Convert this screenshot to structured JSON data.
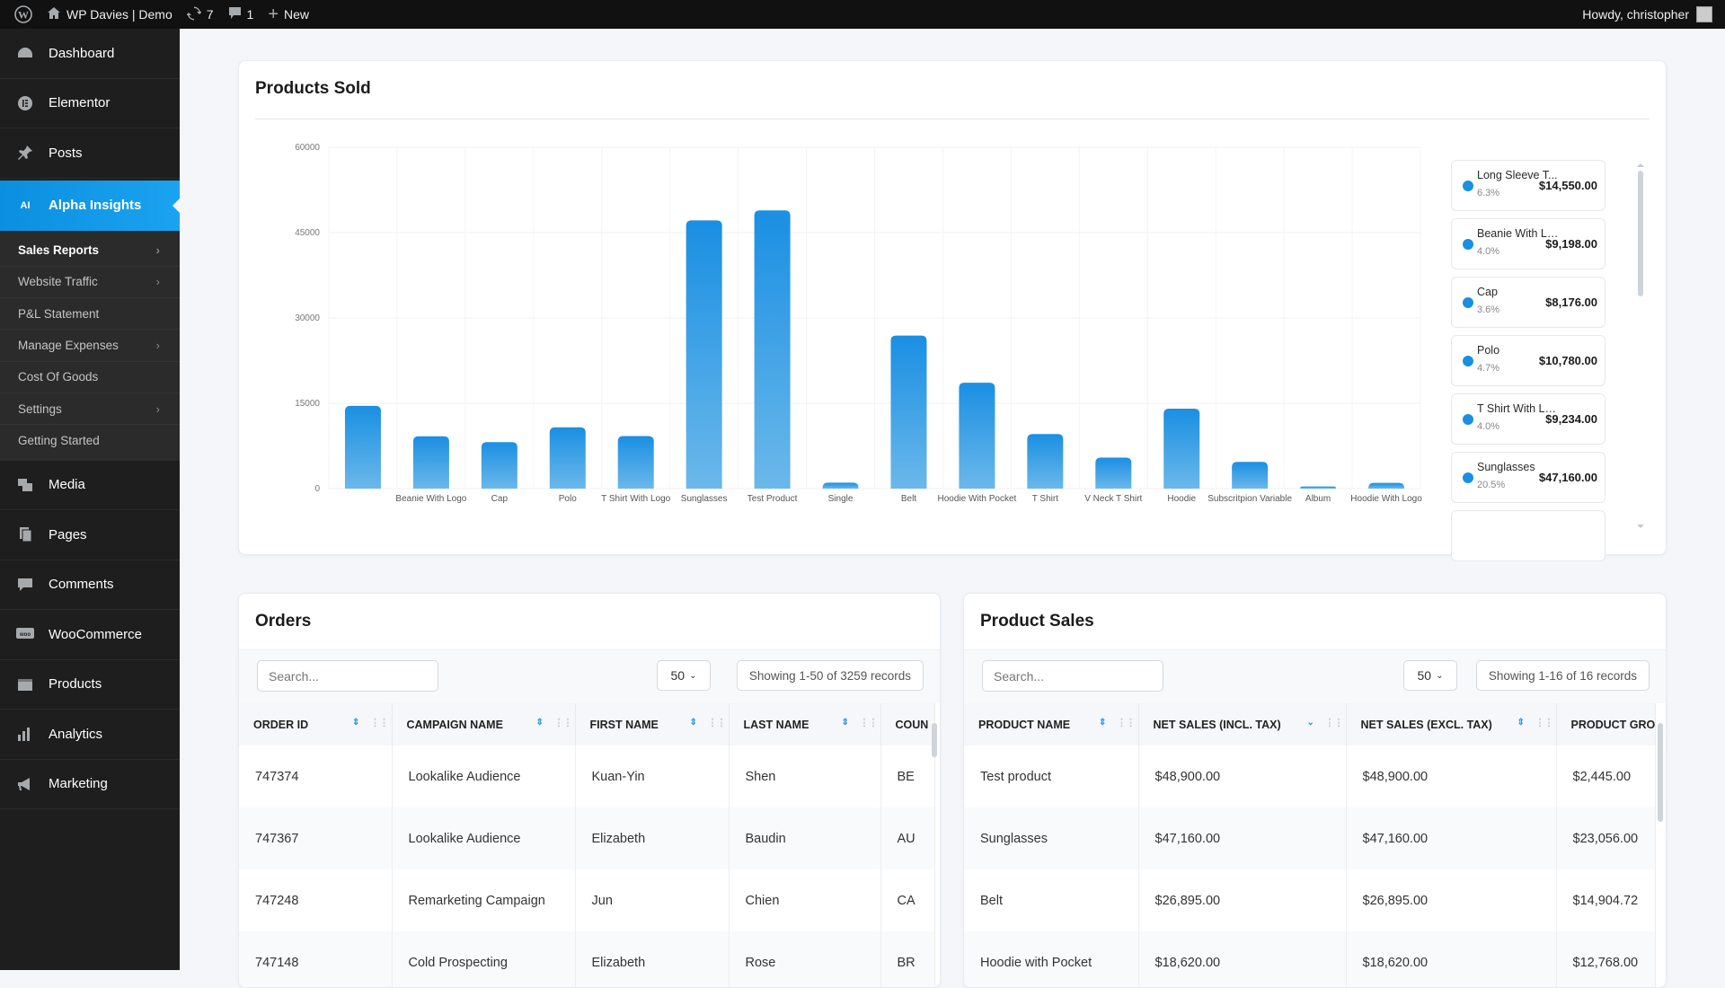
{
  "topbar": {
    "site_name": "WP Davies | Demo",
    "updates_count": "7",
    "comments_count": "1",
    "new_label": "New",
    "howdy": "Howdy, christopher"
  },
  "sidebar": {
    "items_top": [
      {
        "label": "Dashboard"
      },
      {
        "label": "Elementor"
      },
      {
        "label": "Posts"
      }
    ],
    "active": {
      "badge": "AI",
      "label": "Alpha Insights"
    },
    "submenu": [
      {
        "label": "Sales Reports",
        "has_children": true
      },
      {
        "label": "Website Traffic",
        "has_children": true
      },
      {
        "label": "P&L Statement",
        "has_children": false
      },
      {
        "label": "Manage Expenses",
        "has_children": true
      },
      {
        "label": "Cost Of Goods",
        "has_children": false
      },
      {
        "label": "Settings",
        "has_children": true
      },
      {
        "label": "Getting Started",
        "has_children": false
      }
    ],
    "items_bottom": [
      {
        "label": "Media"
      },
      {
        "label": "Pages"
      },
      {
        "label": "Comments"
      },
      {
        "label": "WooCommerce"
      },
      {
        "label": "Products"
      },
      {
        "label": "Analytics"
      },
      {
        "label": "Marketing"
      }
    ]
  },
  "products_sold": {
    "title": "Products Sold",
    "legend": [
      {
        "name": "Long Sleeve T...",
        "pct": "6.3%",
        "value": "$14,550.00"
      },
      {
        "name": "Beanie With Lo...",
        "pct": "4.0%",
        "value": "$9,198.00"
      },
      {
        "name": "Cap",
        "pct": "3.6%",
        "value": "$8,176.00"
      },
      {
        "name": "Polo",
        "pct": "4.7%",
        "value": "$10,780.00"
      },
      {
        "name": "T Shirt With Logo",
        "pct": "4.0%",
        "value": "$9,234.00"
      },
      {
        "name": "Sunglasses",
        "pct": "20.5%",
        "value": "$47,160.00"
      }
    ]
  },
  "chart_data": {
    "type": "bar",
    "title": "Products Sold",
    "categories": [
      "",
      "Beanie With Logo",
      "Cap",
      "Polo",
      "T Shirt With Logo",
      "Sunglasses",
      "Test Product",
      "Single",
      "Belt",
      "Hoodie With Pocket",
      "T Shirt",
      "V Neck T Shirt",
      "Hoodie",
      "Subscritpion Variable",
      "Album",
      "Hoodie With Logo"
    ],
    "values": [
      14550,
      9198,
      8176,
      10780,
      9234,
      47160,
      48900,
      1050,
      26895,
      18620,
      9600,
      5450,
      14050,
      4700,
      370,
      1000
    ],
    "yticks": [
      "0",
      "15000",
      "30000",
      "45000",
      "60000"
    ],
    "ylim": [
      0,
      60000
    ],
    "grid": true,
    "color": "#1a8fe3"
  },
  "orders": {
    "title": "Orders",
    "search_placeholder": "Search...",
    "per_page": "50",
    "showing": "Showing 1-50 of 3259 records",
    "columns": [
      "ORDER ID",
      "CAMPAIGN NAME",
      "FIRST NAME",
      "LAST NAME",
      "COUN"
    ],
    "rows": [
      [
        "747374",
        "Lookalike Audience",
        "Kuan-Yin",
        "Shen",
        "BE"
      ],
      [
        "747367",
        "Lookalike Audience",
        "Elizabeth",
        "Baudin",
        "AU"
      ],
      [
        "747248",
        "Remarketing Campaign",
        "Jun",
        "Chien",
        "CA"
      ],
      [
        "747148",
        "Cold Prospecting",
        "Elizabeth",
        "Rose",
        "BR"
      ]
    ]
  },
  "product_sales": {
    "title": "Product Sales",
    "search_placeholder": "Search...",
    "per_page": "50",
    "showing": "Showing 1-16 of 16 records",
    "columns": [
      "PRODUCT NAME",
      "NET SALES (INCL. TAX)",
      "NET SALES (EXCL. TAX)",
      "PRODUCT GRO"
    ],
    "rows": [
      [
        "Test product",
        "$48,900.00",
        "$48,900.00",
        "$2,445.00"
      ],
      [
        "Sunglasses",
        "$47,160.00",
        "$47,160.00",
        "$23,056.00"
      ],
      [
        "Belt",
        "$26,895.00",
        "$26,895.00",
        "$14,904.72"
      ],
      [
        "Hoodie with Pocket",
        "$18,620.00",
        "$18,620.00",
        "$12,768.00"
      ]
    ]
  }
}
